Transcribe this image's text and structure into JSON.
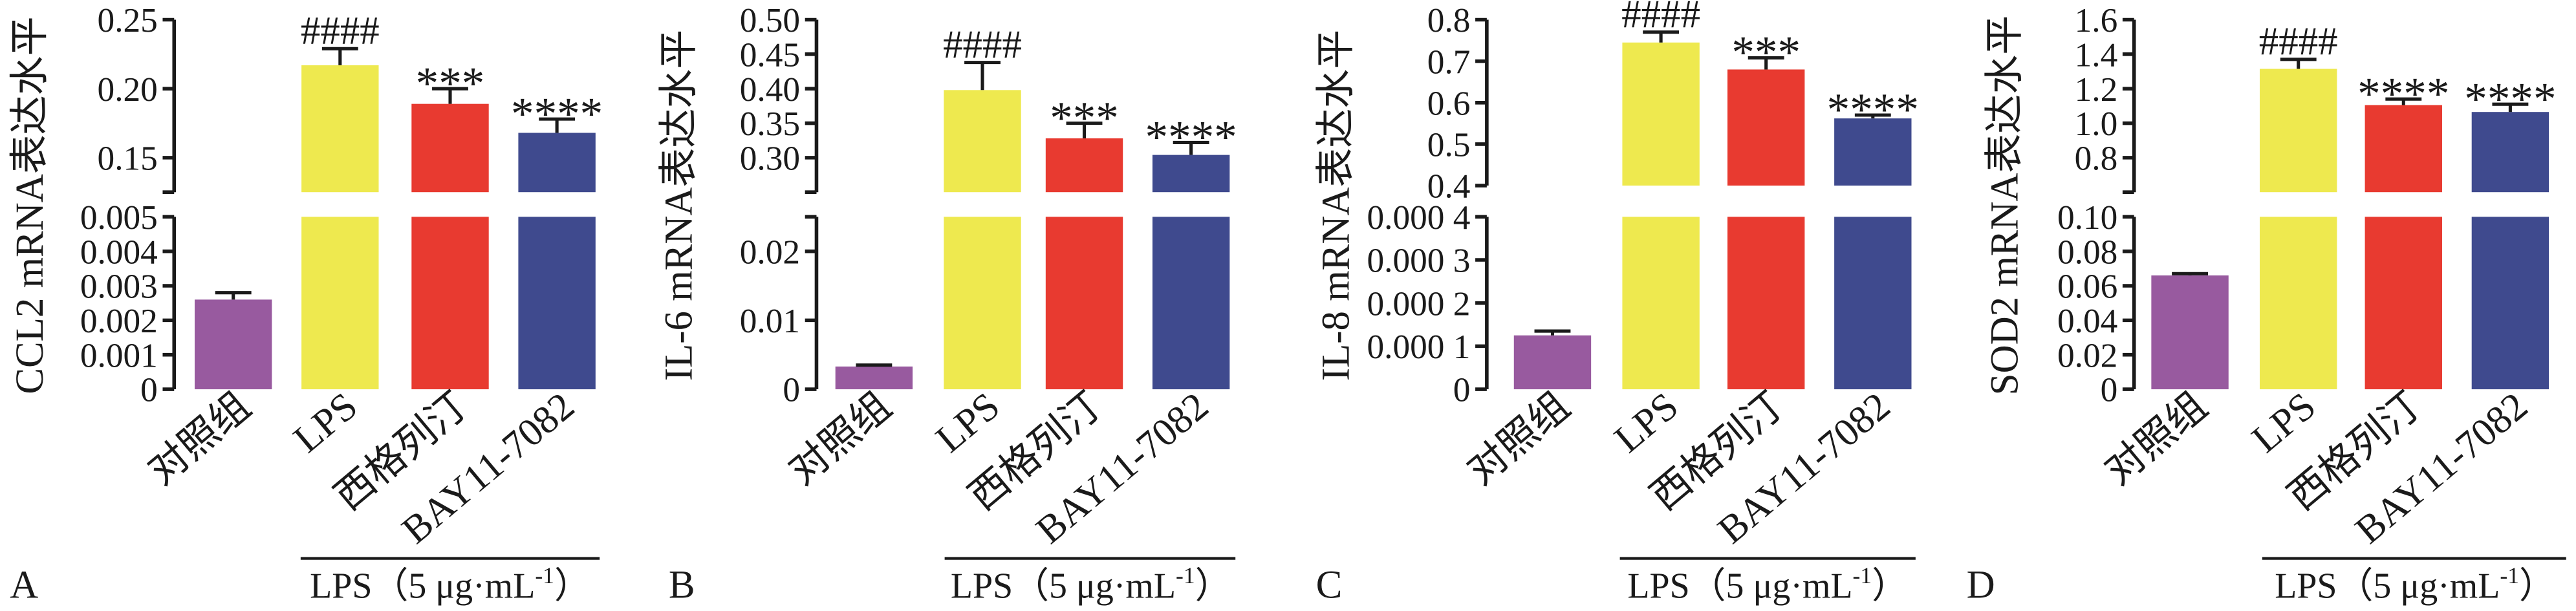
{
  "chart_data": [
    {
      "panel": "A",
      "type": "bar",
      "ylabel": "CCL2 mRNA表达水平",
      "categories": [
        "对照组",
        "LPS",
        "西格列汀",
        "BAY11-7082"
      ],
      "values": [
        0.0026,
        0.217,
        0.189,
        0.168
      ],
      "errors": [
        0.0002,
        0.012,
        0.011,
        0.01
      ],
      "annotations": [
        "",
        "####",
        "***",
        "****"
      ],
      "colors": [
        "#985a9f",
        "#eee94f",
        "#e83a30",
        "#3f4a8e"
      ],
      "y_axis_break": true,
      "ylim_lower": [
        0,
        0.005
      ],
      "ylim_upper": [
        0.125,
        0.25
      ],
      "yticks_lower": [
        0,
        0.001,
        0.002,
        0.003,
        0.004,
        0.005
      ],
      "ytick_labels_lower": [
        "0",
        "0.001",
        "0.002",
        "0.003",
        "0.004",
        "0.005"
      ],
      "yticks_upper": [
        0.15,
        0.2,
        0.25
      ],
      "ytick_labels_upper": [
        "0.15",
        "0.20",
        "0.25"
      ],
      "group_categories": [
        1,
        2,
        3
      ],
      "group_label": {
        "text": "LPS（5 μg·mL",
        "sup": "-1",
        "close": "）"
      },
      "grid": false
    },
    {
      "panel": "B",
      "type": "bar",
      "ylabel": "IL-6 mRNA表达水平",
      "categories": [
        "对照组",
        "LPS",
        "西格列汀",
        "BAY11-7082"
      ],
      "values": [
        0.0033,
        0.398,
        0.328,
        0.304
      ],
      "errors": [
        0.0002,
        0.04,
        0.022,
        0.018
      ],
      "annotations": [
        "",
        "####",
        "***",
        "****"
      ],
      "colors": [
        "#985a9f",
        "#eee94f",
        "#e83a30",
        "#3f4a8e"
      ],
      "y_axis_break": true,
      "ylim_lower": [
        0,
        0.025
      ],
      "ylim_upper": [
        0.25,
        0.5
      ],
      "yticks_lower": [
        0,
        0.01,
        0.02
      ],
      "ytick_labels_lower": [
        "0",
        "0.01",
        "0.02"
      ],
      "yticks_upper": [
        0.3,
        0.35,
        0.4,
        0.45,
        0.5
      ],
      "ytick_labels_upper": [
        "0.30",
        "0.35",
        "0.40",
        "0.45",
        "0.50"
      ],
      "group_categories": [
        1,
        2,
        3
      ],
      "group_label": {
        "text": "LPS（5 μg·mL",
        "sup": "-1",
        "close": "）"
      },
      "grid": false
    },
    {
      "panel": "C",
      "type": "bar",
      "ylabel": "IL-8 mRNA表达水平",
      "categories": [
        "对照组",
        "LPS",
        "西格列汀",
        "BAY11-7082"
      ],
      "values": [
        0.000125,
        0.745,
        0.68,
        0.562
      ],
      "errors": [
        1e-05,
        0.025,
        0.028,
        0.008
      ],
      "annotations": [
        "",
        "####",
        "***",
        "****"
      ],
      "colors": [
        "#985a9f",
        "#eee94f",
        "#e83a30",
        "#3f4a8e"
      ],
      "y_axis_break": true,
      "ylim_lower": [
        0,
        0.0004
      ],
      "ylim_upper": [
        0.4,
        0.8
      ],
      "yticks_lower": [
        0,
        0.0001,
        0.0002,
        0.0003,
        0.0004
      ],
      "ytick_labels_lower": [
        "0",
        "0.000 1",
        "0.000 2",
        "0.000 3",
        "0.000 4"
      ],
      "yticks_upper": [
        0.4,
        0.5,
        0.6,
        0.7,
        0.8
      ],
      "ytick_labels_upper": [
        "0.4",
        "0.5",
        "0.6",
        "0.7",
        "0.8"
      ],
      "group_categories": [
        1,
        2,
        3
      ],
      "group_label": {
        "text": "LPS（5 μg·mL",
        "sup": "-1",
        "close": "）"
      },
      "grid": false
    },
    {
      "panel": "D",
      "type": "bar",
      "ylabel": "SOD2 mRNA表达水平",
      "categories": [
        "对照组",
        "LPS",
        "西格列汀",
        "BAY11-7082"
      ],
      "values": [
        0.066,
        1.315,
        1.105,
        1.065
      ],
      "errors": [
        0.001,
        0.055,
        0.035,
        0.045
      ],
      "annotations": [
        "",
        "####",
        "****",
        "****"
      ],
      "colors": [
        "#985a9f",
        "#eee94f",
        "#e83a30",
        "#3f4a8e"
      ],
      "y_axis_break": true,
      "ylim_lower": [
        0,
        0.1
      ],
      "ylim_upper": [
        0.6,
        1.6
      ],
      "yticks_lower": [
        0,
        0.02,
        0.04,
        0.06,
        0.08,
        0.1
      ],
      "ytick_labels_lower": [
        "0",
        "0.02",
        "0.04",
        "0.06",
        "0.08",
        "0.10"
      ],
      "yticks_upper": [
        0.8,
        1.0,
        1.2,
        1.4,
        1.6
      ],
      "ytick_labels_upper": [
        "0.8",
        "1.0",
        "1.2",
        "1.4",
        "1.6"
      ],
      "group_categories": [
        1,
        2,
        3
      ],
      "group_label": {
        "text": "LPS（5 μg·mL",
        "sup": "-1",
        "close": "）"
      },
      "grid": false
    }
  ]
}
